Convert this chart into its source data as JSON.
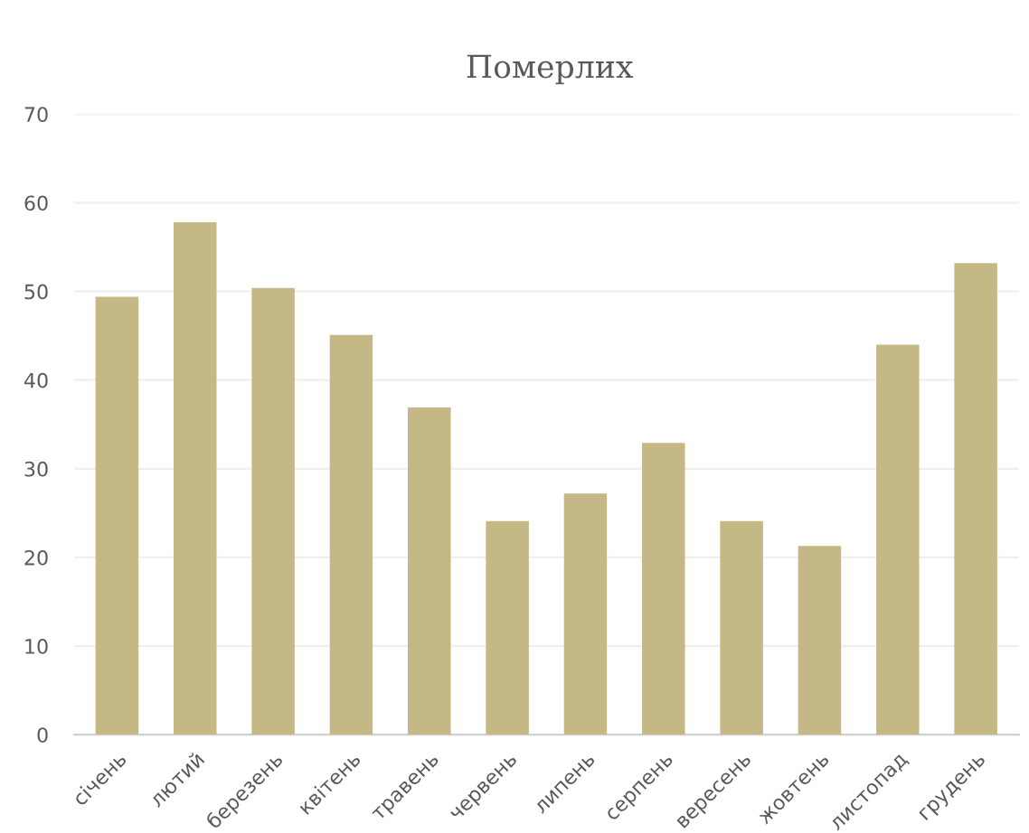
{
  "chart_data": {
    "type": "bar",
    "title": "Померлих",
    "categories": [
      "січень",
      "лютий",
      "березень",
      "квітень",
      "травень",
      "червень",
      "липень",
      "серпень",
      "вересень",
      "жовтень",
      "листопад",
      "грудень"
    ],
    "values": [
      49.4,
      57.8,
      50.4,
      45.1,
      36.9,
      24.1,
      27.2,
      32.9,
      24.1,
      21.3,
      44.0,
      53.2
    ],
    "color": "#c4b886",
    "ylim": [
      0,
      70
    ],
    "yticks": [
      0,
      10,
      20,
      30,
      40,
      50,
      60,
      70
    ],
    "grid": "y",
    "legend": false
  }
}
